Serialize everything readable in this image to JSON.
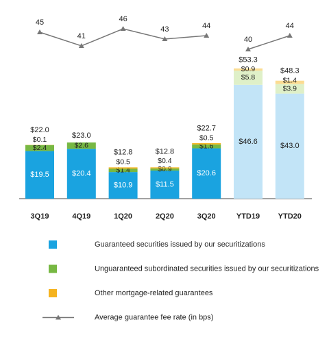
{
  "chart_data": {
    "type": "bar",
    "categories": [
      "3Q19",
      "4Q19",
      "1Q20",
      "2Q20",
      "3Q20",
      "YTD19",
      "YTD20"
    ],
    "ylim": [
      0,
      60
    ],
    "y2lim": [
      30,
      50
    ],
    "series": [
      {
        "name": "Guaranteed securities issued by our securitizations",
        "color": "#1aa3e0",
        "colors": [
          "#1aa3e0",
          "#1aa3e0",
          "#1aa3e0",
          "#1aa3e0",
          "#1aa3e0",
          "#c2e4f7",
          "#c2e4f7"
        ],
        "values": [
          19.5,
          20.4,
          10.9,
          11.5,
          20.6,
          46.6,
          43.0
        ],
        "value_labels": [
          "$19.5",
          "$20.4",
          "$10.9",
          "$11.5",
          "$20.6",
          "$46.6",
          "$43.0"
        ]
      },
      {
        "name": "Unguaranteed subordinated securities issued by our securitizations",
        "color": "#77b843",
        "colors": [
          "#77b843",
          "#77b843",
          "#77b843",
          "#77b843",
          "#77b843",
          "#dff0c8",
          "#dff0c8"
        ],
        "values": [
          2.4,
          2.6,
          1.4,
          0.9,
          1.6,
          5.8,
          3.9
        ],
        "value_labels": [
          "$2.4",
          "$2.6",
          "$1.4",
          "$0.9",
          "$1.6",
          "$5.8",
          "$3.9"
        ]
      },
      {
        "name": "Other mortgage-related guarantees",
        "color": "#f5b31f",
        "colors": [
          "#f5b31f",
          "#f5b31f",
          "#f5b31f",
          "#f5b31f",
          "#f5b31f",
          "#fbdc92",
          "#fbdc92"
        ],
        "values": [
          0.1,
          null,
          0.5,
          0.4,
          0.5,
          0.9,
          1.4
        ],
        "value_labels": [
          "$0.1",
          null,
          "$0.5",
          "$0.4",
          "$0.5",
          "$0.9",
          "$1.4"
        ]
      },
      {
        "name": "Average guarantee fee rate (in bps)",
        "type": "line",
        "axis": "y2",
        "color": "#777777",
        "values": [
          45,
          41,
          46,
          43,
          44,
          40,
          44
        ]
      }
    ],
    "totals": {
      "values": [
        22.0,
        23.0,
        12.8,
        12.8,
        22.7,
        53.3,
        48.3
      ],
      "value_labels": [
        "$22.0",
        "$23.0",
        "$12.8",
        "$12.8",
        "$22.7",
        "$53.3",
        "$48.3"
      ]
    }
  }
}
